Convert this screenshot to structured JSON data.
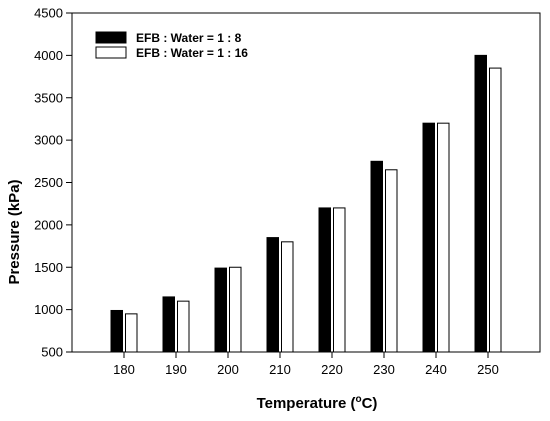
{
  "chart_data": {
    "type": "bar",
    "categories": [
      "180",
      "190",
      "200",
      "210",
      "220",
      "230",
      "240",
      "250"
    ],
    "series": [
      {
        "name": "EFB : Water = 1 : 8",
        "values": [
          990,
          1150,
          1490,
          1850,
          2200,
          2750,
          3200,
          4000
        ],
        "color": "#000000"
      },
      {
        "name": "EFB : Water = 1 : 16",
        "values": [
          950,
          1100,
          1500,
          1800,
          2200,
          2650,
          3200,
          3850
        ],
        "color": "#ffffff"
      }
    ],
    "xlabel_main": "Temperature (",
    "xlabel_sup": "o",
    "xlabel_end": "C)",
    "ylabel": "Pressure (kPa)",
    "ylim": [
      500,
      4500
    ],
    "yticks": [
      "500",
      "1000",
      "1500",
      "2000",
      "2500",
      "3000",
      "3500",
      "4000",
      "4500"
    ],
    "grid": false,
    "legend_position": "top-left"
  }
}
